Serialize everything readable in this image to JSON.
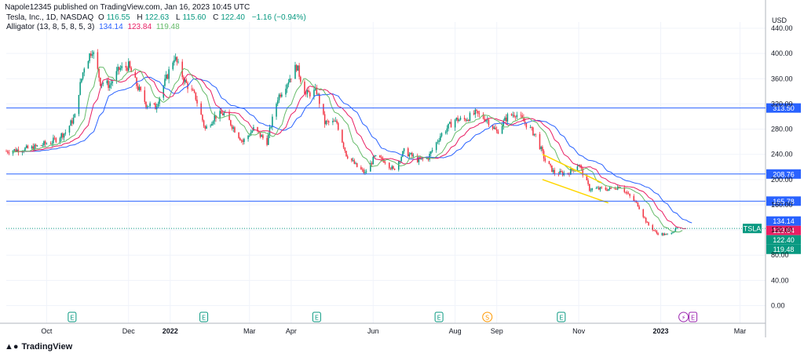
{
  "header": {
    "published": "Napole12345 published on TradingView.com, Jan 16, 2023 10:45 UTC",
    "symbol_line": "Tesla, Inc., 1D, NASDAQ",
    "o_label": "O",
    "o_val": "116.55",
    "h_label": "H",
    "h_val": "122.63",
    "l_label": "L",
    "l_val": "115.60",
    "c_label": "C",
    "c_val": "122.40",
    "chg": "−1.16 (−0.94%)",
    "alligator_label": "Alligator (13, 8, 5, 8, 5, 3)",
    "jaw_val": "134.14",
    "teeth_val": "123.84",
    "lips_val": "119.48"
  },
  "footer": {
    "brand": "TradingView"
  },
  "colors": {
    "up": "#089981",
    "down": "#f23645",
    "jaw": "#2962ff",
    "teeth": "#e91e63",
    "lips": "#66bb6a",
    "hline": "#2962ff",
    "wedge": "#ffd600",
    "grid": "#f0f3fa"
  },
  "chart_data": {
    "type": "candlestick",
    "currency": "USD",
    "y_axis_ticks": [
      "440.00",
      "400.00",
      "360.00",
      "320.00",
      "280.00",
      "240.00",
      "200.00",
      "160.00",
      "120.00",
      "80.00",
      "40.00",
      "0.00"
    ],
    "ylim": [
      -28,
      450
    ],
    "x_axis_labels": [
      {
        "label": "Oct",
        "date": "2021-10-01"
      },
      {
        "label": "Dec",
        "date": "2021-12-01"
      },
      {
        "label": "2022",
        "date": "2022-01-01",
        "bold": true
      },
      {
        "label": "Mar",
        "date": "2022-03-01"
      },
      {
        "label": "Apr",
        "date": "2022-04-01"
      },
      {
        "label": "Jun",
        "date": "2022-06-01"
      },
      {
        "label": "Aug",
        "date": "2022-08-01"
      },
      {
        "label": "Sep",
        "date": "2022-09-01"
      },
      {
        "label": "Nov",
        "date": "2022-11-01"
      },
      {
        "label": "2023",
        "date": "2023-01-01",
        "bold": true
      },
      {
        "label": "Mar",
        "date": "2023-03-01"
      }
    ],
    "xlim": [
      "2021-09-01",
      "2023-03-20"
    ],
    "price_path": [
      {
        "date": "2021-09-01",
        "price": 245
      },
      {
        "date": "2021-09-20",
        "price": 250
      },
      {
        "date": "2021-10-05",
        "price": 260
      },
      {
        "date": "2021-10-15",
        "price": 275
      },
      {
        "date": "2021-10-22",
        "price": 300
      },
      {
        "date": "2021-10-25",
        "price": 340
      },
      {
        "date": "2021-10-29",
        "price": 380
      },
      {
        "date": "2021-11-04",
        "price": 407
      },
      {
        "date": "2021-11-10",
        "price": 355
      },
      {
        "date": "2021-11-17",
        "price": 350
      },
      {
        "date": "2021-11-24",
        "price": 375
      },
      {
        "date": "2021-12-01",
        "price": 380
      },
      {
        "date": "2021-12-07",
        "price": 350
      },
      {
        "date": "2021-12-14",
        "price": 320
      },
      {
        "date": "2021-12-21",
        "price": 315
      },
      {
        "date": "2021-12-29",
        "price": 360
      },
      {
        "date": "2022-01-04",
        "price": 395
      },
      {
        "date": "2022-01-12",
        "price": 355
      },
      {
        "date": "2022-01-20",
        "price": 330
      },
      {
        "date": "2022-01-27",
        "price": 280
      },
      {
        "date": "2022-02-03",
        "price": 300
      },
      {
        "date": "2022-02-10",
        "price": 305
      },
      {
        "date": "2022-02-24",
        "price": 260
      },
      {
        "date": "2022-03-04",
        "price": 280
      },
      {
        "date": "2022-03-14",
        "price": 260
      },
      {
        "date": "2022-03-22",
        "price": 330
      },
      {
        "date": "2022-04-01",
        "price": 365
      },
      {
        "date": "2022-04-05",
        "price": 380
      },
      {
        "date": "2022-04-12",
        "price": 335
      },
      {
        "date": "2022-04-20",
        "price": 340
      },
      {
        "date": "2022-04-26",
        "price": 290
      },
      {
        "date": "2022-05-05",
        "price": 290
      },
      {
        "date": "2022-05-12",
        "price": 240
      },
      {
        "date": "2022-05-20",
        "price": 220
      },
      {
        "date": "2022-05-26",
        "price": 210
      },
      {
        "date": "2022-06-02",
        "price": 235
      },
      {
        "date": "2022-06-10",
        "price": 230
      },
      {
        "date": "2022-06-16",
        "price": 215
      },
      {
        "date": "2022-06-24",
        "price": 245
      },
      {
        "date": "2022-07-05",
        "price": 230
      },
      {
        "date": "2022-07-12",
        "price": 235
      },
      {
        "date": "2022-07-21",
        "price": 270
      },
      {
        "date": "2022-08-01",
        "price": 295
      },
      {
        "date": "2022-08-08",
        "price": 295
      },
      {
        "date": "2022-08-16",
        "price": 305
      },
      {
        "date": "2022-08-25",
        "price": 295
      },
      {
        "date": "2022-09-01",
        "price": 275
      },
      {
        "date": "2022-09-09",
        "price": 300
      },
      {
        "date": "2022-09-15",
        "price": 305
      },
      {
        "date": "2022-09-22",
        "price": 290
      },
      {
        "date": "2022-09-30",
        "price": 270
      },
      {
        "date": "2022-10-07",
        "price": 230
      },
      {
        "date": "2022-10-14",
        "price": 210
      },
      {
        "date": "2022-10-24",
        "price": 210
      },
      {
        "date": "2022-11-01",
        "price": 225
      },
      {
        "date": "2022-11-09",
        "price": 185
      },
      {
        "date": "2022-11-17",
        "price": 185
      },
      {
        "date": "2022-11-25",
        "price": 185
      },
      {
        "date": "2022-12-02",
        "price": 190
      },
      {
        "date": "2022-12-08",
        "price": 175
      },
      {
        "date": "2022-12-15",
        "price": 160
      },
      {
        "date": "2022-12-22",
        "price": 130
      },
      {
        "date": "2022-12-29",
        "price": 115
      },
      {
        "date": "2023-01-05",
        "price": 112
      },
      {
        "date": "2023-01-13",
        "price": 122
      }
    ],
    "horizontal_lines": [
      {
        "price": 313.5,
        "label": "313.50"
      },
      {
        "price": 208.76,
        "label": "208.76"
      },
      {
        "price": 165.78,
        "label": "165.78"
      }
    ],
    "price_badges": [
      {
        "price": 134.14,
        "label": "134.14",
        "series": "jaw"
      },
      {
        "price": 123.84,
        "label": "123.84",
        "series": "teeth"
      },
      {
        "price": 122.4,
        "label": "122.40",
        "series": "price"
      },
      {
        "price": 119.48,
        "label": "119.48",
        "series": "lips"
      }
    ],
    "symbol_tag": "TSLA",
    "last_price": 122.4,
    "wedge": {
      "upper": [
        {
          "date": "2022-10-05",
          "price": 240
        },
        {
          "date": "2022-11-18",
          "price": 195
        }
      ],
      "lower": [
        {
          "date": "2022-10-05",
          "price": 200
        },
        {
          "date": "2022-11-23",
          "price": 163
        }
      ]
    },
    "events": [
      {
        "date": "2021-10-20",
        "label": "E",
        "kind": "earnings"
      },
      {
        "date": "2022-01-26",
        "label": "E",
        "kind": "earnings"
      },
      {
        "date": "2022-04-20",
        "label": "E",
        "kind": "earnings"
      },
      {
        "date": "2022-07-20",
        "label": "E",
        "kind": "earnings"
      },
      {
        "date": "2022-08-25",
        "label": "S",
        "kind": "split"
      },
      {
        "date": "2022-10-19",
        "label": "E",
        "kind": "earnings"
      },
      {
        "date": "2023-01-18",
        "label": "⚡",
        "kind": "dividend"
      },
      {
        "date": "2023-01-25",
        "label": "E",
        "kind": "earnings-upcoming"
      }
    ]
  }
}
